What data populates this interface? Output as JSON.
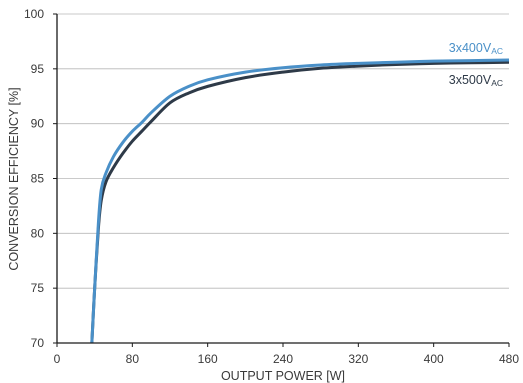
{
  "chart_data": {
    "type": "line",
    "title": "",
    "xlabel": "OUTPUT POWER [W]",
    "ylabel": "CONVERSION EFFICIENCY [%]",
    "xlim": [
      0,
      480
    ],
    "ylim": [
      70,
      100
    ],
    "xticks": [
      0,
      80,
      160,
      240,
      320,
      400,
      480
    ],
    "yticks": [
      70,
      75,
      80,
      85,
      90,
      95,
      100
    ],
    "grid": "horizontal",
    "legend": "inline-right",
    "series": [
      {
        "name": "3x400V",
        "name_subscript": "AC",
        "color": "#4a90c8",
        "x": [
          37,
          40,
          44,
          47,
          52,
          60,
          70,
          80,
          90,
          100,
          120,
          140,
          160,
          200,
          240,
          280,
          320,
          360,
          400,
          440,
          480
        ],
        "y": [
          70,
          75,
          81,
          84,
          85.5,
          87,
          88.3,
          89.3,
          90.1,
          91,
          92.5,
          93.4,
          94,
          94.7,
          95.1,
          95.35,
          95.5,
          95.6,
          95.7,
          95.75,
          95.8
        ]
      },
      {
        "name": "3x500V",
        "name_subscript": "AC",
        "color": "#2e3a48",
        "x": [
          37,
          40,
          44,
          47,
          52,
          60,
          70,
          80,
          90,
          100,
          120,
          140,
          160,
          200,
          240,
          280,
          320,
          360,
          400,
          440,
          480
        ],
        "y": [
          70,
          75,
          80.5,
          83,
          84.7,
          86,
          87.3,
          88.4,
          89.3,
          90.2,
          91.9,
          92.8,
          93.4,
          94.2,
          94.7,
          95.05,
          95.25,
          95.4,
          95.5,
          95.55,
          95.6
        ]
      }
    ]
  }
}
